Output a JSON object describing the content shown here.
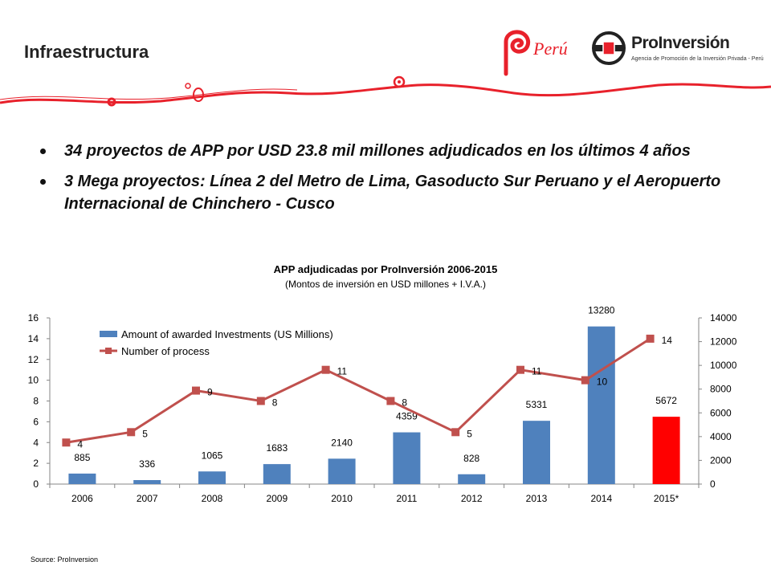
{
  "header": {
    "title": "Infraestructura",
    "brand_accent": "#e8212b",
    "logos": {
      "peru_text": "Perú",
      "proinversion_name": "ProInversión",
      "proinversion_tagline": "Agencia de Promoción de la Inversión Privada - Perú"
    }
  },
  "bullets": [
    "34 proyectos de APP por USD 23.8 mil millones adjudicados en los últimos 4 años",
    "3 Mega proyectos: Línea 2 del Metro de Lima, Gasoducto Sur Peruano y el Aeropuerto Internacional de Chinchero - Cusco"
  ],
  "chart_data": {
    "type": "bar",
    "title": "APP adjudicadas por ProInversión 2006-2015",
    "subtitle": "(Montos de inversión en USD millones + I.V.A.)",
    "categories": [
      "2006",
      "2007",
      "2008",
      "2009",
      "2010",
      "2011",
      "2012",
      "2013",
      "2014",
      "2015*"
    ],
    "series": [
      {
        "name": "Amount of awarded Investments (US Millions)",
        "type": "bar",
        "axis": "right",
        "color": "#4f81bd",
        "highlight": {
          "index": 9,
          "color": "#ff0000"
        },
        "values": [
          885,
          336,
          1065,
          1683,
          2140,
          4359,
          828,
          5331,
          13280,
          5672
        ]
      },
      {
        "name": "Number of process",
        "type": "line",
        "axis": "left",
        "color": "#c0504d",
        "values": [
          4,
          5,
          9,
          8,
          11,
          8,
          5,
          11,
          10,
          14
        ]
      }
    ],
    "y_left": {
      "min": 0,
      "max": 16,
      "ticks": [
        0,
        2,
        4,
        6,
        8,
        10,
        12,
        14,
        16
      ]
    },
    "y_right": {
      "min": 0,
      "max": 14000,
      "ticks": [
        0,
        2000,
        4000,
        6000,
        8000,
        10000,
        12000,
        14000
      ]
    },
    "legend": "top-left",
    "grid": false
  },
  "source": "Source: ProInversion"
}
